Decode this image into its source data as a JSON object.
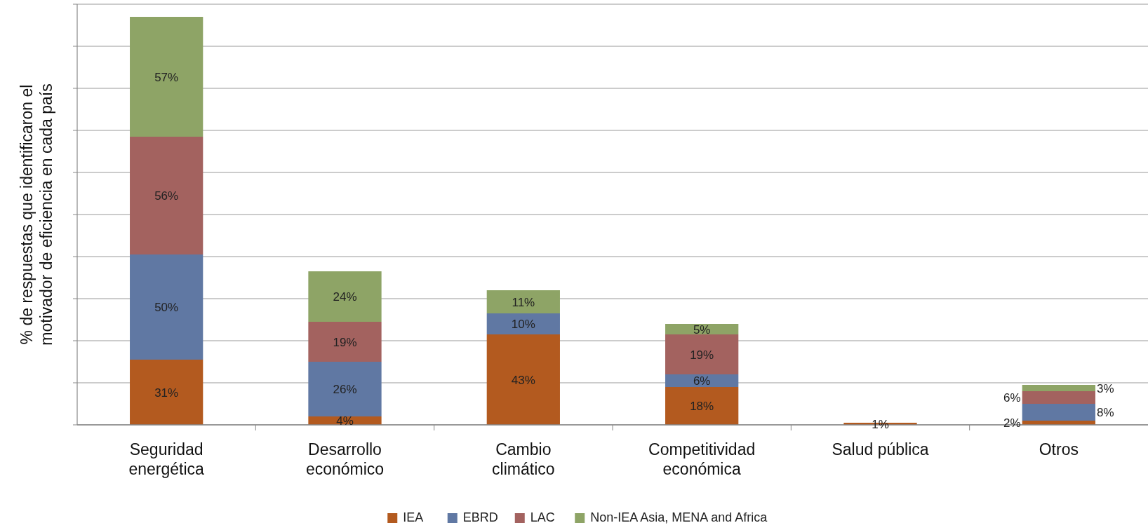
{
  "chart_data": {
    "type": "bar",
    "stacked": true,
    "ylabel": "% de respuestas que identificaron el motivador de eficiencia en cada país",
    "categories": [
      "Seguridad energética",
      "Desarrollo económico",
      "Cambio climático",
      "Competitividad económica",
      "Salud pública",
      "Otros"
    ],
    "series": [
      {
        "name": "IEA",
        "color": "#b35a1f",
        "values": [
          31,
          4,
          43,
          18,
          1,
          2
        ],
        "value_labels": [
          "31%",
          "4%",
          "43%",
          "18%",
          "1%",
          "2%"
        ]
      },
      {
        "name": "EBRD",
        "color": "#6078a3",
        "values": [
          50,
          26,
          10,
          6,
          null,
          8
        ],
        "value_labels": [
          "50%",
          "26%",
          "10%",
          "6%",
          null,
          "8%"
        ]
      },
      {
        "name": "LAC",
        "color": "#a3625f",
        "values": [
          56,
          19,
          null,
          19,
          null,
          6
        ],
        "value_labels": [
          "56%",
          "19%",
          null,
          "19%",
          null,
          "6%"
        ]
      },
      {
        "name": "Non-IEA Asia, MENA and Africa",
        "color": "#8ea466",
        "values": [
          57,
          24,
          11,
          5,
          null,
          3
        ],
        "value_labels": [
          "57%",
          "24%",
          "11%",
          "5%",
          null,
          "3%"
        ]
      }
    ],
    "grid": "y",
    "tick_labels": "x",
    "legend": "bottom"
  }
}
